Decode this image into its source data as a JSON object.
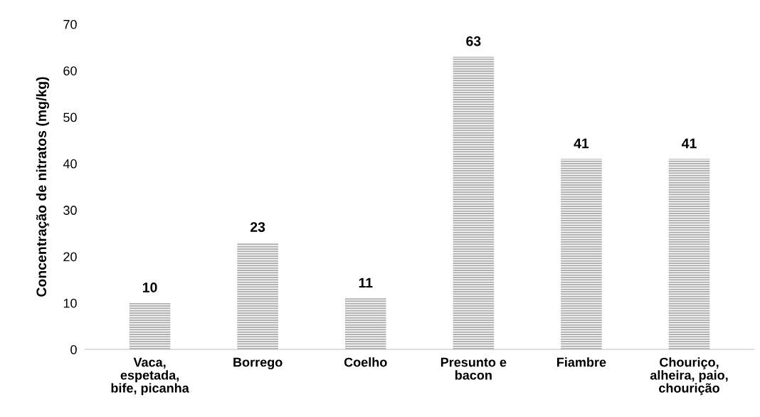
{
  "chart_data": {
    "type": "bar",
    "ylabel": "Concentração de nitratos (mg/kg)",
    "categories": [
      "Vaca,\nespetada,\nbife, picanha",
      "Borrego",
      "Coelho",
      "Presunto e\nbacon",
      "Fiambre",
      "Chouriço,\nalheira, paio,\nchourição"
    ],
    "values": [
      10,
      23,
      11,
      63,
      41,
      41
    ],
    "color": "#b0b0b0",
    "ylim": [
      0,
      70
    ],
    "yticks": [
      0,
      10,
      20,
      30,
      40,
      50,
      60,
      70
    ],
    "grid": false,
    "data_labels": true
  }
}
